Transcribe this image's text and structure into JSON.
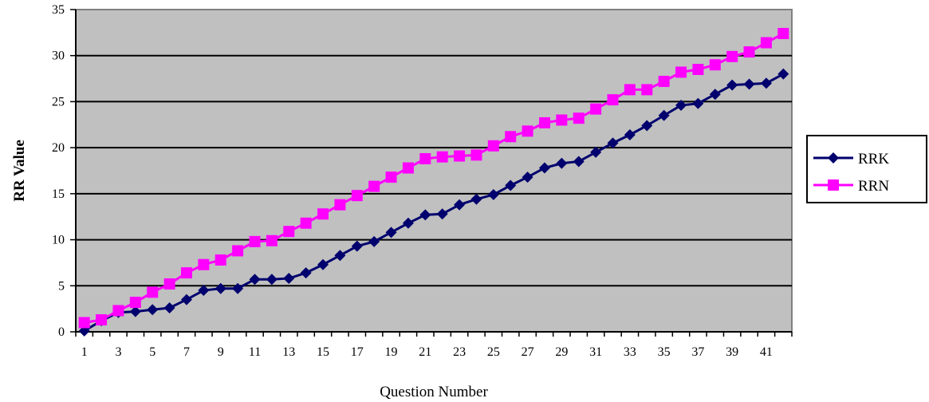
{
  "chart_data": {
    "type": "line",
    "title": "",
    "xlabel": "Question Number",
    "ylabel": "RR Value",
    "x": [
      1,
      2,
      3,
      4,
      5,
      6,
      7,
      8,
      9,
      10,
      11,
      12,
      13,
      14,
      15,
      16,
      17,
      18,
      19,
      20,
      21,
      22,
      23,
      24,
      25,
      26,
      27,
      28,
      29,
      30,
      31,
      32,
      33,
      34,
      35,
      36,
      37,
      38,
      39,
      40,
      41,
      42
    ],
    "x_tick_labels": [
      "1",
      "3",
      "5",
      "7",
      "9",
      "11",
      "13",
      "15",
      "17",
      "19",
      "21",
      "23",
      "25",
      "27",
      "29",
      "31",
      "33",
      "35",
      "37",
      "39",
      "41"
    ],
    "y_tick_labels": [
      "0",
      "5",
      "10",
      "15",
      "20",
      "25",
      "30",
      "35"
    ],
    "ylim": [
      0,
      35
    ],
    "grid": "horizontal",
    "legend_position": "right",
    "series": [
      {
        "name": "RRK",
        "color": "#00006e",
        "marker": "diamond",
        "values": [
          0.1,
          1.2,
          2.1,
          2.2,
          2.4,
          2.6,
          3.5,
          4.5,
          4.7,
          4.7,
          5.7,
          5.7,
          5.8,
          6.4,
          7.3,
          8.3,
          9.3,
          9.8,
          10.8,
          11.8,
          12.7,
          12.8,
          13.8,
          14.4,
          14.9,
          15.9,
          16.8,
          17.8,
          18.3,
          18.5,
          19.5,
          20.5,
          21.4,
          22.4,
          23.5,
          24.6,
          24.8,
          25.8,
          26.8,
          26.9,
          27.0,
          28.0
        ]
      },
      {
        "name": "RRN",
        "color": "#ff00ff",
        "marker": "square",
        "values": [
          1.0,
          1.3,
          2.3,
          3.2,
          4.3,
          5.2,
          6.4,
          7.3,
          7.8,
          8.8,
          9.8,
          9.9,
          10.9,
          11.8,
          12.8,
          13.8,
          14.8,
          15.8,
          16.8,
          17.8,
          18.8,
          19.0,
          19.1,
          19.2,
          20.2,
          21.2,
          21.8,
          22.7,
          23.0,
          23.2,
          24.2,
          25.2,
          26.3,
          26.3,
          27.2,
          28.2,
          28.5,
          29.0,
          29.9,
          30.4,
          31.4,
          32.4
        ]
      }
    ]
  }
}
